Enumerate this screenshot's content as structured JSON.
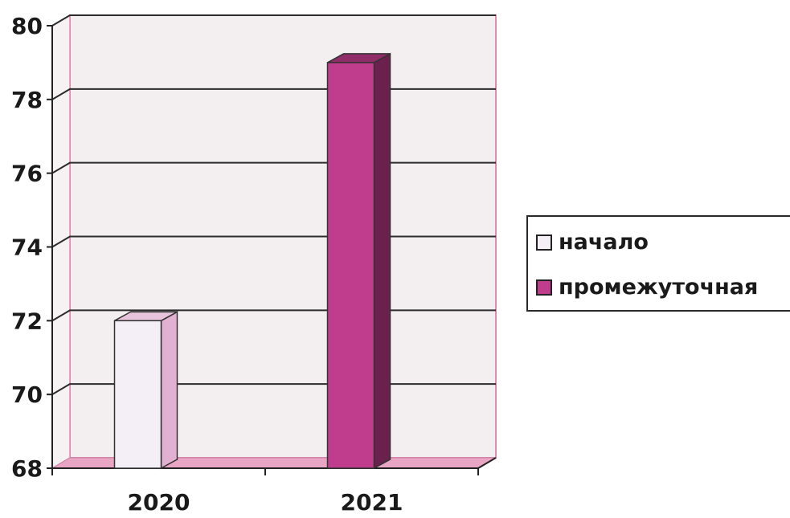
{
  "chart_data": {
    "type": "bar",
    "categories": [
      "2020",
      "2021"
    ],
    "series": [
      {
        "name": "начало",
        "values": [
          72,
          null
        ],
        "color": "#f4eef6"
      },
      {
        "name": "промежуточная",
        "values": [
          null,
          79
        ],
        "color": "#c03c8c"
      }
    ],
    "ylim": [
      68,
      80
    ],
    "yticks": [
      "68",
      "70",
      "72",
      "74",
      "76",
      "78",
      "80"
    ],
    "grid": true,
    "legend_position": "right",
    "title": "",
    "xlabel": "",
    "ylabel": ""
  },
  "colors": {
    "plot_background": "#f3eff1",
    "plot_border": "#e08cb0",
    "floor": "#e9a6c4",
    "gridline": "#2b2b2b"
  }
}
